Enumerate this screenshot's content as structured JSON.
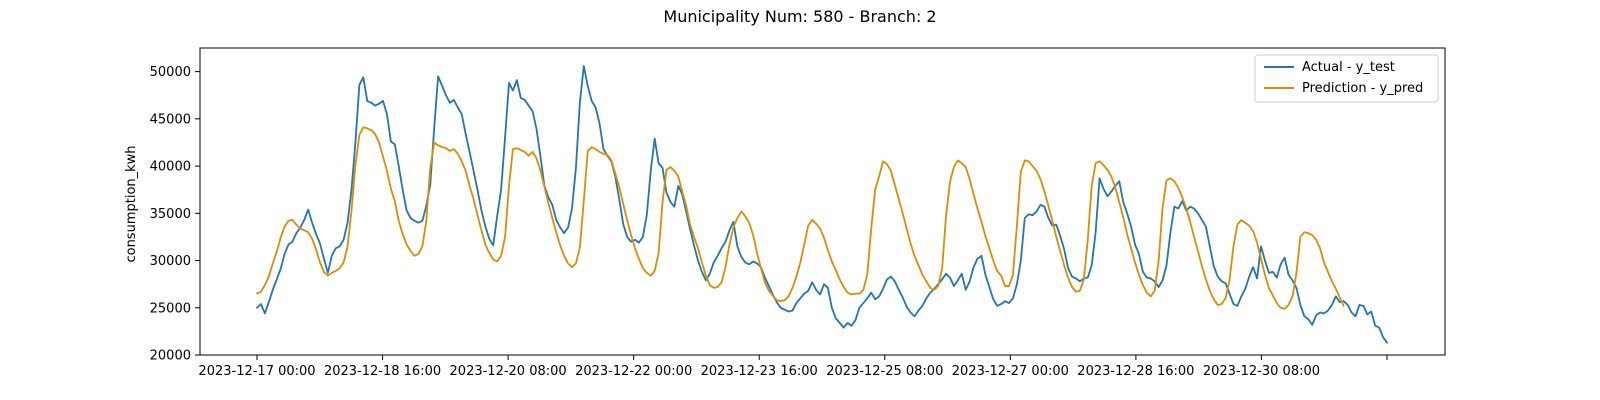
{
  "chart_data": {
    "type": "line",
    "title": "Municipality Num: 580 - Branch: 2",
    "xlabel": "",
    "ylabel": "consumption_kwh",
    "ylim": [
      20000,
      52500
    ],
    "y_ticks": [
      20000,
      25000,
      30000,
      35000,
      40000,
      45000,
      50000
    ],
    "x_ticks": [
      "2023-12-17 00:00",
      "2023-12-18 16:00",
      "2023-12-20 08:00",
      "2023-12-22 00:00",
      "2023-12-23 16:00",
      "2023-12-25 08:00",
      "2023-12-27 00:00",
      "2023-12-28 16:00",
      "2023-12-30 08:00",
      ""
    ],
    "x_start": "2023-12-17 00:00",
    "x_step_hours": 4,
    "grid": false,
    "legend_position": "top-right",
    "series": [
      {
        "name": "Actual - y_test",
        "color": "#1f77b4",
        "values": [
          25000,
          25400,
          24400,
          25600,
          26900,
          28000,
          29100,
          30700,
          31700,
          32000,
          32900,
          33500,
          34300,
          35400,
          34000,
          32800,
          31800,
          30200,
          28700,
          30500,
          31300,
          31500,
          32200,
          34000,
          37500,
          42500,
          48600,
          49400,
          46900,
          46700,
          46400,
          46600,
          46900,
          45500,
          42600,
          42300,
          40000,
          37500,
          35300,
          34500,
          34200,
          34000,
          34200,
          35800,
          38000,
          44000,
          49500,
          48500,
          47500,
          46700,
          47000,
          46200,
          45500,
          43400,
          41500,
          39500,
          37500,
          35300,
          33600,
          32300,
          31600,
          34700,
          37500,
          43000,
          48800,
          48000,
          49100,
          47200,
          47000,
          46400,
          45800,
          43900,
          41000,
          37900,
          36700,
          35900,
          34300,
          33500,
          32900,
          33500,
          35500,
          39800,
          46700,
          50600,
          48500,
          46900,
          46200,
          44500,
          41800,
          41100,
          40500,
          38900,
          36500,
          33900,
          32500,
          32000,
          32200,
          31900,
          32500,
          34800,
          39500,
          42900,
          40300,
          39800,
          37200,
          36200,
          35700,
          37900,
          37000,
          35200,
          33300,
          31600,
          30000,
          28800,
          27900,
          28600,
          29800,
          30500,
          31300,
          32000,
          33200,
          34100,
          31500,
          30400,
          29800,
          29600,
          29900,
          29700,
          29300,
          28200,
          27300,
          26400,
          25600,
          25000,
          24800,
          24600,
          24700,
          25500,
          26000,
          26500,
          26800,
          27700,
          26900,
          26400,
          27500,
          27100,
          25000,
          23900,
          23400,
          22900,
          23400,
          23100,
          23700,
          25000,
          25500,
          26000,
          26600,
          25900,
          26200,
          27000,
          28000,
          28300,
          27800,
          26900,
          26100,
          25100,
          24500,
          24100,
          24700,
          25200,
          26000,
          26600,
          27000,
          27500,
          28000,
          28600,
          28200,
          27300,
          27900,
          28600,
          26900,
          27800,
          29300,
          30200,
          30500,
          28500,
          27200,
          25900,
          25200,
          25400,
          25700,
          25500,
          26000,
          27500,
          30000,
          34500,
          34900,
          34800,
          35200,
          35900,
          35700,
          34500,
          33700,
          33800,
          32600,
          31200,
          29200,
          28300,
          28100,
          27800,
          28100,
          28200,
          29500,
          33000,
          38700,
          37600,
          36800,
          37300,
          37900,
          38400,
          36200,
          35000,
          33600,
          31700,
          30700,
          28800,
          28200,
          28100,
          27800,
          27200,
          27900,
          29500,
          33000,
          35700,
          35500,
          36300,
          35300,
          35700,
          35500,
          35000,
          34300,
          33600,
          31500,
          29400,
          28300,
          27800,
          27600,
          26500,
          25400,
          25200,
          26200,
          27000,
          28300,
          29300,
          28100,
          31500,
          30000,
          28700,
          28800,
          28200,
          29600,
          30300,
          28500,
          27900,
          27100,
          25300,
          24100,
          23800,
          23200,
          24200,
          24500,
          24400,
          24700,
          25300,
          26200,
          25600,
          25700,
          25300,
          24500,
          24100,
          25300,
          25200,
          24300,
          24600,
          23100,
          22900,
          21900,
          21300
        ]
      },
      {
        "name": "Prediction - y_pred",
        "color": "#df8c00",
        "values": [
          26500,
          26700,
          27400,
          28300,
          29700,
          30900,
          32400,
          33600,
          34200,
          34300,
          33800,
          33400,
          33200,
          33000,
          32300,
          31200,
          29800,
          28800,
          28400,
          28700,
          28900,
          29200,
          29800,
          31500,
          35300,
          40100,
          43300,
          44100,
          44000,
          43800,
          43400,
          42500,
          41000,
          39500,
          37600,
          36300,
          34200,
          32800,
          31700,
          31000,
          30500,
          30700,
          31500,
          34200,
          39800,
          42500,
          42200,
          42000,
          41900,
          41600,
          41800,
          41300,
          40500,
          39500,
          37900,
          36500,
          34800,
          33200,
          31700,
          30800,
          30100,
          29900,
          30500,
          32500,
          37900,
          41800,
          41900,
          41700,
          41500,
          41100,
          41500,
          40800,
          39500,
          37800,
          36100,
          34500,
          33000,
          31600,
          30500,
          29700,
          29300,
          29700,
          31400,
          36300,
          41600,
          42000,
          41800,
          41500,
          41300,
          41200,
          40600,
          39200,
          37800,
          36000,
          34300,
          32700,
          31300,
          30200,
          29200,
          28700,
          28400,
          28900,
          30800,
          36200,
          39600,
          39900,
          39500,
          38900,
          37300,
          35800,
          33800,
          32500,
          31300,
          29800,
          28400,
          27400,
          27100,
          27200,
          27700,
          29300,
          31700,
          33500,
          34500,
          35200,
          34700,
          34000,
          32700,
          30800,
          29200,
          27700,
          26800,
          26300,
          25800,
          25700,
          25800,
          26200,
          27100,
          28300,
          29800,
          31700,
          33700,
          34300,
          33900,
          33400,
          32400,
          31100,
          29900,
          29000,
          28000,
          27200,
          26600,
          26400,
          26500,
          26500,
          26900,
          28500,
          33400,
          37500,
          38900,
          40500,
          40200,
          39500,
          38000,
          36500,
          35000,
          33400,
          31800,
          30500,
          29500,
          28500,
          27800,
          27100,
          26900,
          27300,
          29100,
          34700,
          38300,
          39900,
          40600,
          40300,
          39900,
          38600,
          37000,
          35500,
          34100,
          32600,
          31300,
          30000,
          28900,
          28400,
          27300,
          27300,
          28500,
          33700,
          39400,
          40600,
          40500,
          40000,
          39500,
          38600,
          37300,
          35800,
          34200,
          32500,
          31000,
          29500,
          28200,
          27200,
          26700,
          26800,
          28000,
          32200,
          37900,
          40300,
          40500,
          40100,
          39600,
          38900,
          37700,
          36200,
          34600,
          32800,
          31300,
          29800,
          28500,
          27400,
          26600,
          26200,
          26800,
          30000,
          35600,
          38500,
          38700,
          38400,
          37700,
          36700,
          35500,
          34100,
          32500,
          31000,
          29400,
          28000,
          26800,
          25900,
          25300,
          25400,
          26000,
          27900,
          31500,
          33800,
          34300,
          34000,
          33700,
          33100,
          31900,
          30200,
          28500,
          27100,
          26300,
          25500,
          25000,
          24900,
          25300,
          26200,
          28700,
          32500,
          33000,
          32900,
          32700,
          32200,
          31300,
          29800,
          28800,
          27800,
          27000,
          26100,
          25200
        ]
      }
    ]
  }
}
